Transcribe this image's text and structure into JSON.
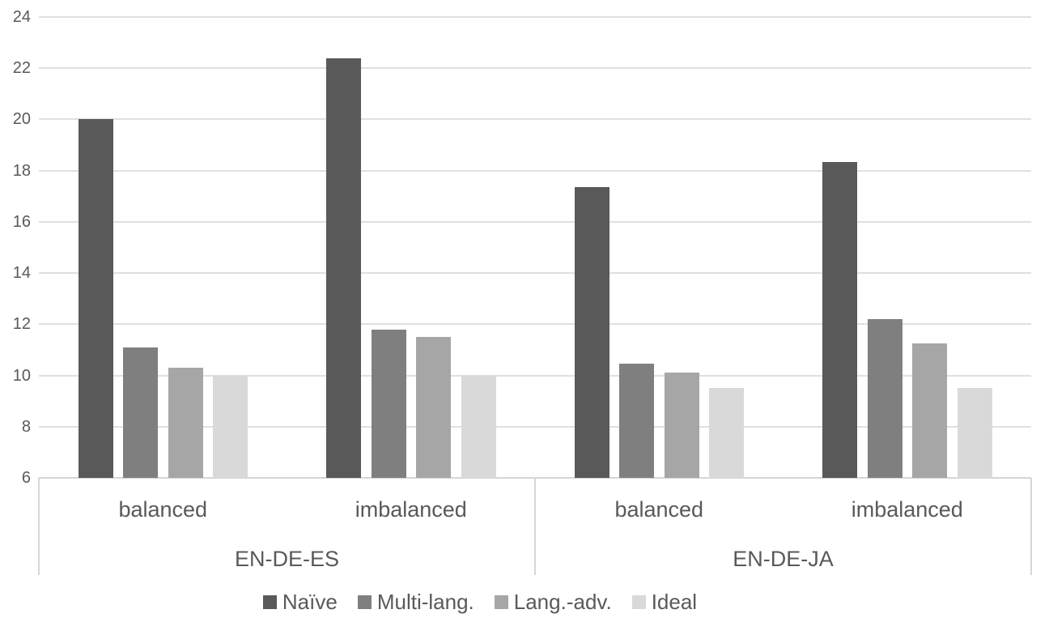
{
  "chart_data": {
    "type": "bar",
    "title": "",
    "categories": [
      "balanced",
      "imbalanced",
      "balanced",
      "imbalanced"
    ],
    "category_groups": [
      {
        "label": "EN-DE-ES",
        "start": 0,
        "end": 1
      },
      {
        "label": "EN-DE-JA",
        "start": 2,
        "end": 3
      }
    ],
    "series": [
      {
        "name": "Naïve",
        "color": "#595959",
        "values": [
          20.0,
          22.4,
          17.35,
          18.35
        ]
      },
      {
        "name": "Multi-lang.",
        "color": "#7f7f7f",
        "values": [
          11.1,
          11.8,
          10.45,
          12.2
        ]
      },
      {
        "name": "Lang.-adv.",
        "color": "#a6a6a6",
        "values": [
          10.3,
          11.5,
          10.1,
          11.25
        ]
      },
      {
        "name": "Ideal",
        "color": "#d9d9d9",
        "values": [
          10.0,
          10.0,
          9.5,
          9.5
        ]
      }
    ],
    "y_axis": {
      "min": 6,
      "max": 24,
      "step": 2,
      "tick_labels": [
        "24",
        "22",
        "20",
        "18",
        "16",
        "14",
        "12",
        "10",
        "8",
        "6"
      ]
    },
    "legend_position": "bottom",
    "grid": true,
    "colors": {
      "text": "#595959",
      "gridline": "#e0e0e0",
      "axis_line": "#d6d6d6"
    }
  }
}
